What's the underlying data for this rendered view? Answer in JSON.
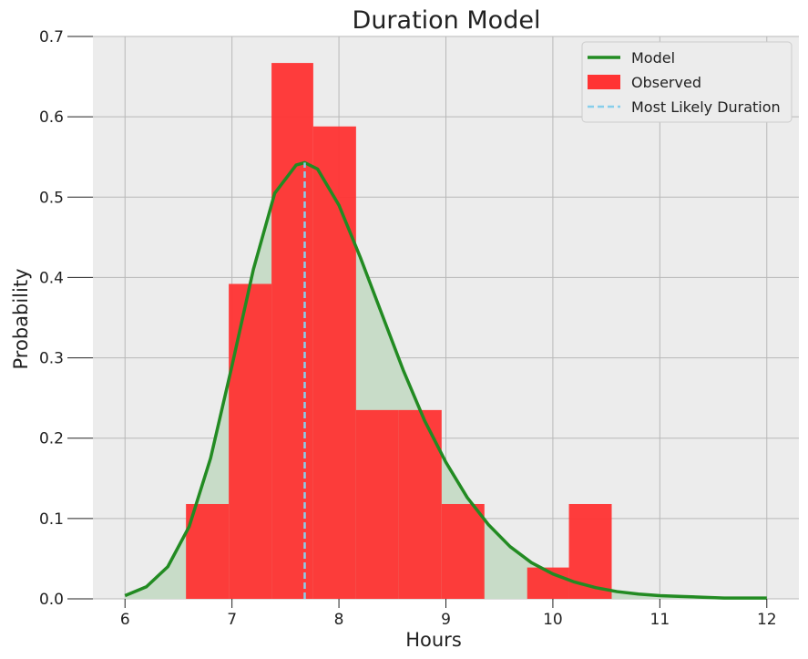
{
  "chart_data": {
    "type": "bar",
    "title": "Duration Model",
    "xlabel": "Hours",
    "ylabel": "Probability",
    "xlim": [
      5.7,
      12.3
    ],
    "ylim": [
      0.0,
      0.7
    ],
    "xticks": [
      "6",
      "7",
      "8",
      "9",
      "10",
      "11",
      "12"
    ],
    "yticks": [
      "0.0",
      "0.1",
      "0.2",
      "0.3",
      "0.4",
      "0.5",
      "0.6",
      "0.7"
    ],
    "grid": true,
    "legend_placement": "top-right",
    "legend": [
      {
        "label": "Model",
        "kind": "line",
        "color": "#228b22"
      },
      {
        "label": "Observed",
        "kind": "patch",
        "color": "#ff3333"
      },
      {
        "label": "Most Likely Duration",
        "kind": "dashed",
        "color": "#87ceeb"
      }
    ],
    "series": [
      {
        "name": "Observed",
        "kind": "histogram",
        "color": "#ff3333",
        "bins": [
          {
            "x0": 6.57,
            "x1": 6.97,
            "y": 0.118
          },
          {
            "x0": 6.97,
            "x1": 7.37,
            "y": 0.392
          },
          {
            "x0": 7.37,
            "x1": 7.76,
            "y": 0.667
          },
          {
            "x0": 7.76,
            "x1": 8.16,
            "y": 0.588
          },
          {
            "x0": 8.16,
            "x1": 8.56,
            "y": 0.235
          },
          {
            "x0": 8.56,
            "x1": 8.96,
            "y": 0.235
          },
          {
            "x0": 8.96,
            "x1": 9.36,
            "y": 0.118
          },
          {
            "x0": 9.36,
            "x1": 9.76,
            "y": 0.0
          },
          {
            "x0": 9.76,
            "x1": 10.15,
            "y": 0.039
          },
          {
            "x0": 10.15,
            "x1": 10.55,
            "y": 0.118
          }
        ]
      },
      {
        "name": "Model",
        "kind": "line",
        "color": "#228b22",
        "fill": "#c8dcc8",
        "x": [
          6.0,
          6.2,
          6.4,
          6.6,
          6.8,
          7.0,
          7.2,
          7.4,
          7.6,
          7.68,
          7.8,
          8.0,
          8.2,
          8.4,
          8.6,
          8.8,
          9.0,
          9.2,
          9.4,
          9.6,
          9.8,
          10.0,
          10.2,
          10.4,
          10.6,
          10.8,
          11.0,
          11.2,
          11.4,
          11.6,
          11.8,
          12.0
        ],
        "y": [
          0.004,
          0.015,
          0.04,
          0.09,
          0.175,
          0.29,
          0.41,
          0.505,
          0.54,
          0.543,
          0.535,
          0.49,
          0.425,
          0.355,
          0.285,
          0.222,
          0.17,
          0.126,
          0.092,
          0.065,
          0.045,
          0.031,
          0.021,
          0.014,
          0.009,
          0.006,
          0.004,
          0.003,
          0.002,
          0.001,
          0.001,
          0.001
        ]
      },
      {
        "name": "Most Likely Duration",
        "kind": "vline",
        "color": "#87ceeb",
        "x": 7.68,
        "y_top": 0.543
      }
    ]
  }
}
